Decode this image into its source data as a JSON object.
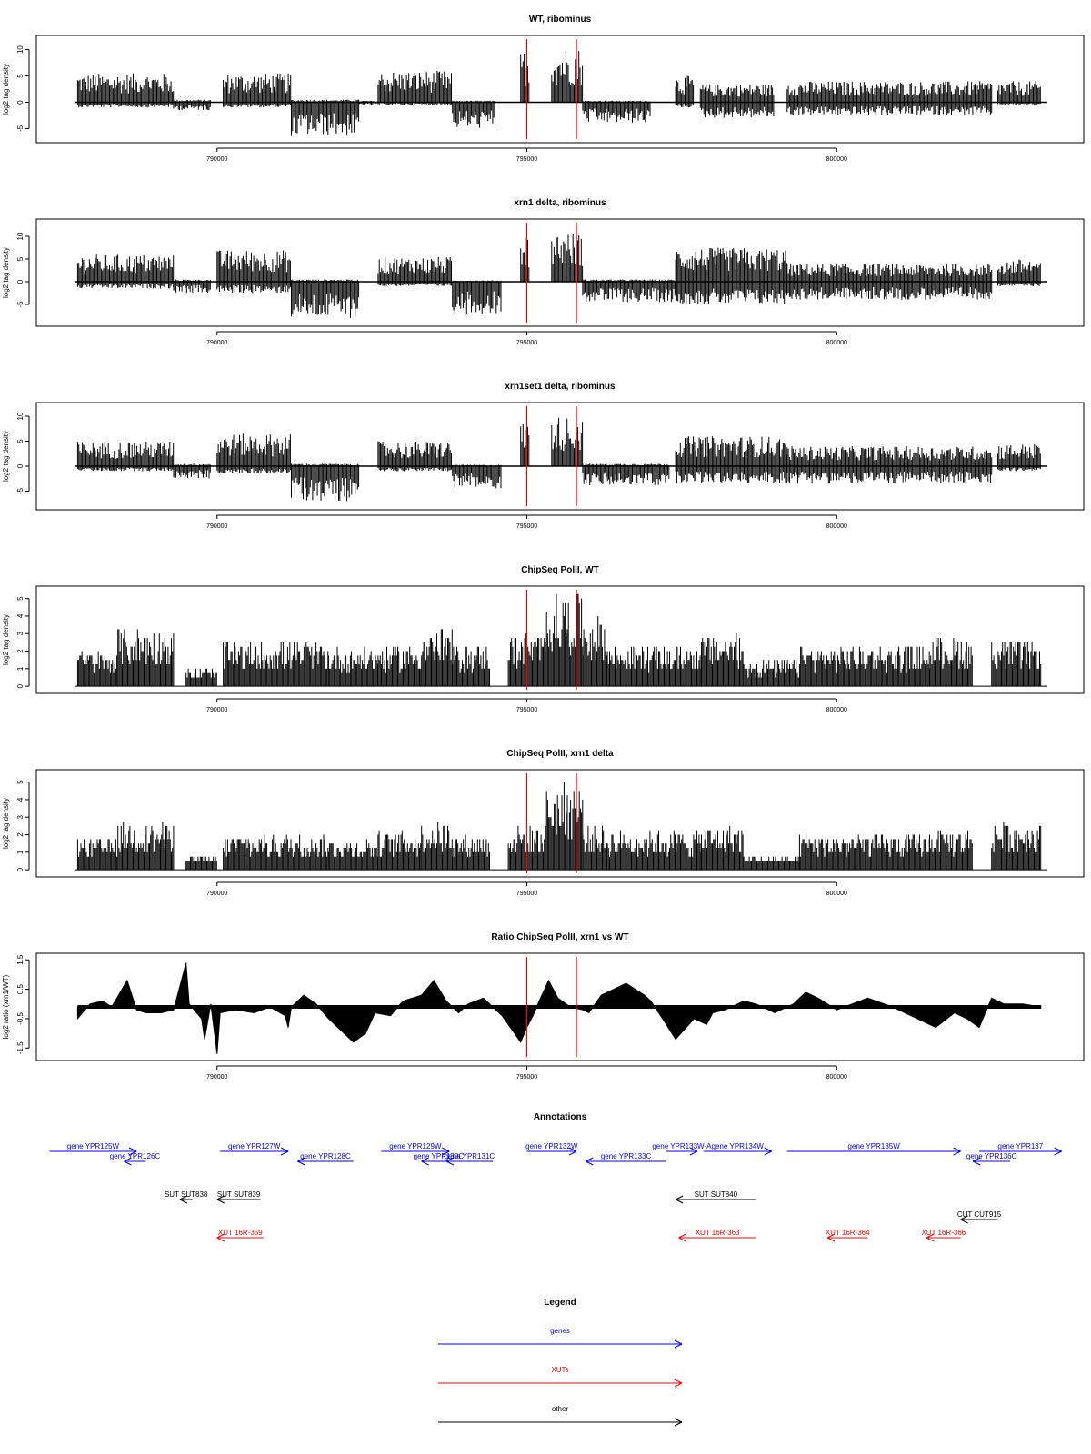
{
  "chart_data": {
    "type": "genome-track-panels",
    "x_range": [
      787700,
      803400
    ],
    "x_ticks": [
      790000,
      795000,
      800000
    ],
    "panels": [
      {
        "kind": "signed",
        "title": "WT, ribominus",
        "ylabel": "log2 tag density",
        "ylim": [
          -7,
          12
        ],
        "yticks": [
          -5,
          0,
          5,
          10
        ],
        "red_lines": [
          795000,
          795800
        ],
        "regions": [
          {
            "start": 787750,
            "end": 789300,
            "lo": -1.0,
            "hi": 5.5
          },
          {
            "start": 789300,
            "end": 789900,
            "lo": -1.5,
            "hi": 0.5
          },
          {
            "start": 790100,
            "end": 791200,
            "lo": -1.0,
            "hi": 5.5
          },
          {
            "start": 791200,
            "end": 792300,
            "lo": -6.5,
            "hi": 0.5
          },
          {
            "start": 792300,
            "end": 792600,
            "lo": -0.5,
            "hi": 0.3
          },
          {
            "start": 792600,
            "end": 793800,
            "lo": -0.5,
            "hi": 6.0
          },
          {
            "start": 793800,
            "end": 794500,
            "lo": -5.0,
            "hi": 0.3
          },
          {
            "start": 794900,
            "end": 795050,
            "lo": 0.0,
            "hi": 10.0
          },
          {
            "start": 795400,
            "end": 795900,
            "lo": 0.0,
            "hi": 10.5
          },
          {
            "start": 795900,
            "end": 797000,
            "lo": -4.0,
            "hi": 0.3
          },
          {
            "start": 797400,
            "end": 797700,
            "lo": -1.0,
            "hi": 5.0
          },
          {
            "start": 797800,
            "end": 799000,
            "lo": -3.0,
            "hi": 3.5
          },
          {
            "start": 799200,
            "end": 802500,
            "lo": -2.5,
            "hi": 4.0
          },
          {
            "start": 802600,
            "end": 803300,
            "lo": -0.5,
            "hi": 4.0
          }
        ]
      },
      {
        "kind": "signed",
        "title": "xrn1 delta, ribominus",
        "ylabel": "log2 tag density",
        "ylim": [
          -9,
          13
        ],
        "yticks": [
          -5,
          0,
          5,
          10
        ],
        "red_lines": [
          795000,
          795800
        ],
        "regions": [
          {
            "start": 787750,
            "end": 789300,
            "lo": -1.5,
            "hi": 6.0
          },
          {
            "start": 789300,
            "end": 789900,
            "lo": -2.5,
            "hi": 0.5
          },
          {
            "start": 790000,
            "end": 791200,
            "lo": -2.5,
            "hi": 7.0
          },
          {
            "start": 791200,
            "end": 792300,
            "lo": -8.0,
            "hi": 0.5
          },
          {
            "start": 792600,
            "end": 793800,
            "lo": -1.0,
            "hi": 5.5
          },
          {
            "start": 793800,
            "end": 794600,
            "lo": -7.0,
            "hi": 0.3
          },
          {
            "start": 794900,
            "end": 795050,
            "lo": 0.0,
            "hi": 10.5
          },
          {
            "start": 795400,
            "end": 795900,
            "lo": 0.0,
            "hi": 11.0
          },
          {
            "start": 795900,
            "end": 797400,
            "lo": -4.5,
            "hi": 0.5
          },
          {
            "start": 797400,
            "end": 799200,
            "lo": -5.0,
            "hi": 7.5
          },
          {
            "start": 799200,
            "end": 802500,
            "lo": -4.0,
            "hi": 4.0
          },
          {
            "start": 802600,
            "end": 803300,
            "lo": -1.0,
            "hi": 5.0
          }
        ]
      },
      {
        "kind": "signed",
        "title": "xrn1set1 delta, ribominus",
        "ylabel": "log2 tag density",
        "ylim": [
          -8,
          12
        ],
        "yticks": [
          -5,
          0,
          5,
          10
        ],
        "red_lines": [
          795000,
          795800
        ],
        "regions": [
          {
            "start": 787750,
            "end": 789300,
            "lo": -1.0,
            "hi": 5.0
          },
          {
            "start": 789300,
            "end": 789900,
            "lo": -2.5,
            "hi": 0.5
          },
          {
            "start": 790000,
            "end": 791200,
            "lo": -1.5,
            "hi": 6.5
          },
          {
            "start": 791200,
            "end": 792300,
            "lo": -7.0,
            "hi": 0.5
          },
          {
            "start": 792600,
            "end": 793800,
            "lo": -1.0,
            "hi": 5.0
          },
          {
            "start": 793800,
            "end": 794600,
            "lo": -4.5,
            "hi": 0.3
          },
          {
            "start": 794900,
            "end": 795050,
            "lo": 0.0,
            "hi": 9.0
          },
          {
            "start": 795400,
            "end": 795900,
            "lo": 0.0,
            "hi": 10.0
          },
          {
            "start": 795900,
            "end": 797300,
            "lo": -4.0,
            "hi": 0.5
          },
          {
            "start": 797400,
            "end": 799200,
            "lo": -3.5,
            "hi": 6.0
          },
          {
            "start": 799200,
            "end": 802500,
            "lo": -3.5,
            "hi": 4.0
          },
          {
            "start": 802600,
            "end": 803300,
            "lo": -1.0,
            "hi": 4.5
          }
        ]
      },
      {
        "kind": "positive",
        "title": "ChipSeq PolII, WT",
        "ylabel": "log2 tag density",
        "ylim": [
          -0.2,
          5.5
        ],
        "yticks": [
          0,
          1,
          2,
          3,
          4,
          5
        ],
        "red_lines": [
          795000,
          795800
        ],
        "regions": [
          {
            "start": 787750,
            "end": 788400,
            "hi": 2.0
          },
          {
            "start": 788400,
            "end": 789300,
            "hi": 3.3
          },
          {
            "start": 789500,
            "end": 790000,
            "hi": 1.0
          },
          {
            "start": 790100,
            "end": 791800,
            "hi": 2.5
          },
          {
            "start": 791800,
            "end": 792600,
            "hi": 2.2
          },
          {
            "start": 792600,
            "end": 793300,
            "hi": 2.3
          },
          {
            "start": 793300,
            "end": 793800,
            "hi": 3.2
          },
          {
            "start": 793800,
            "end": 794400,
            "hi": 2.3
          },
          {
            "start": 794700,
            "end": 795300,
            "hi": 3.0
          },
          {
            "start": 795300,
            "end": 795900,
            "hi": 5.2
          },
          {
            "start": 795900,
            "end": 796300,
            "hi": 4.0
          },
          {
            "start": 796300,
            "end": 797800,
            "hi": 2.3
          },
          {
            "start": 797800,
            "end": 798500,
            "hi": 2.9
          },
          {
            "start": 798500,
            "end": 799400,
            "hi": 1.5
          },
          {
            "start": 799400,
            "end": 801500,
            "hi": 2.3
          },
          {
            "start": 801500,
            "end": 802200,
            "hi": 2.8
          },
          {
            "start": 802500,
            "end": 803300,
            "hi": 2.6
          }
        ]
      },
      {
        "kind": "positive",
        "title": "ChipSeq PolII, xrn1 delta",
        "ylabel": "log2 tag density",
        "ylim": [
          -0.2,
          5.5
        ],
        "yticks": [
          0,
          1,
          2,
          3,
          4,
          5
        ],
        "red_lines": [
          795000,
          795800
        ],
        "regions": [
          {
            "start": 787750,
            "end": 788400,
            "hi": 1.8
          },
          {
            "start": 788400,
            "end": 789300,
            "hi": 2.7
          },
          {
            "start": 789500,
            "end": 790000,
            "hi": 0.8
          },
          {
            "start": 790100,
            "end": 791800,
            "hi": 2.0
          },
          {
            "start": 791800,
            "end": 792600,
            "hi": 1.8
          },
          {
            "start": 792600,
            "end": 793300,
            "hi": 2.2
          },
          {
            "start": 793300,
            "end": 793800,
            "hi": 2.8
          },
          {
            "start": 793800,
            "end": 794400,
            "hi": 2.0
          },
          {
            "start": 794700,
            "end": 795300,
            "hi": 2.5
          },
          {
            "start": 795300,
            "end": 795900,
            "hi": 5.0
          },
          {
            "start": 795900,
            "end": 796300,
            "hi": 2.5
          },
          {
            "start": 796300,
            "end": 797800,
            "hi": 2.2
          },
          {
            "start": 797800,
            "end": 798500,
            "hi": 2.5
          },
          {
            "start": 798500,
            "end": 799400,
            "hi": 0.8
          },
          {
            "start": 799400,
            "end": 801500,
            "hi": 2.0
          },
          {
            "start": 801500,
            "end": 802200,
            "hi": 2.3
          },
          {
            "start": 802500,
            "end": 803300,
            "hi": 2.7
          }
        ]
      },
      {
        "kind": "ratio",
        "title": "Ratio ChipSeq PolII, xrn1 vs WT",
        "ylabel": "log2 ratio (xrn1/WT)",
        "ylim": [
          -1.8,
          1.6
        ],
        "yticks": [
          -1.5,
          -0.5,
          0.5,
          1.5
        ],
        "baseline": -0.1,
        "red_lines": [
          795000,
          795800
        ],
        "profile": [
          [
            787750,
            -0.5
          ],
          [
            787950,
            0.0
          ],
          [
            788150,
            0.1
          ],
          [
            788300,
            -0.1
          ],
          [
            788550,
            0.8
          ],
          [
            788700,
            -0.2
          ],
          [
            788850,
            -0.3
          ],
          [
            789100,
            -0.3
          ],
          [
            789300,
            -0.2
          ],
          [
            789500,
            1.4
          ],
          [
            789550,
            0.0
          ],
          [
            789750,
            -0.5
          ],
          [
            789800,
            -1.2
          ],
          [
            789900,
            0.0
          ],
          [
            790000,
            -1.7
          ],
          [
            790050,
            -0.3
          ],
          [
            790300,
            -0.2
          ],
          [
            790600,
            -0.3
          ],
          [
            790850,
            -0.1
          ],
          [
            791100,
            -0.4
          ],
          [
            791150,
            -0.8
          ],
          [
            791200,
            -0.1
          ],
          [
            791400,
            0.3
          ],
          [
            791600,
            0.0
          ],
          [
            791800,
            -0.5
          ],
          [
            792200,
            -1.3
          ],
          [
            792400,
            -1.0
          ],
          [
            792550,
            -0.3
          ],
          [
            792800,
            -0.4
          ],
          [
            793000,
            0.1
          ],
          [
            793300,
            0.3
          ],
          [
            793500,
            0.8
          ],
          [
            793700,
            0.1
          ],
          [
            793900,
            -0.3
          ],
          [
            794050,
            0.0
          ],
          [
            794300,
            0.2
          ],
          [
            794600,
            -0.4
          ],
          [
            794900,
            -1.3
          ],
          [
            795000,
            -0.8
          ],
          [
            795100,
            -0.4
          ],
          [
            795200,
            0.1
          ],
          [
            795350,
            0.8
          ],
          [
            795500,
            0.2
          ],
          [
            795700,
            -0.1
          ],
          [
            795900,
            -0.2
          ],
          [
            796000,
            -0.3
          ],
          [
            796200,
            0.3
          ],
          [
            796600,
            0.7
          ],
          [
            796900,
            0.3
          ],
          [
            797000,
            0.1
          ],
          [
            797250,
            -0.7
          ],
          [
            797400,
            -1.2
          ],
          [
            797700,
            -0.5
          ],
          [
            797900,
            -0.7
          ],
          [
            798000,
            -0.3
          ],
          [
            798200,
            -0.2
          ],
          [
            798500,
            0.1
          ],
          [
            798700,
            0.0
          ],
          [
            799000,
            -0.3
          ],
          [
            799300,
            0.0
          ],
          [
            799500,
            0.4
          ],
          [
            799700,
            0.2
          ],
          [
            800000,
            -0.2
          ],
          [
            800500,
            0.2
          ],
          [
            800900,
            -0.1
          ],
          [
            801300,
            -0.5
          ],
          [
            801600,
            -0.8
          ],
          [
            801900,
            -0.3
          ],
          [
            802100,
            -0.5
          ],
          [
            802300,
            -0.8
          ],
          [
            802500,
            0.2
          ],
          [
            802700,
            0.0
          ],
          [
            803000,
            0.0
          ],
          [
            803300,
            -0.1
          ]
        ]
      }
    ],
    "annotations": {
      "title": "Annotations",
      "x_right_extent": 803630,
      "features": [
        {
          "label": "gene YPR125W",
          "start": 787300,
          "end": 788700,
          "dir": "+",
          "row": 0,
          "type": "gene"
        },
        {
          "label": "gene YPR126C",
          "start": 788500,
          "end": 788850,
          "dir": "-",
          "row": 1,
          "type": "gene"
        },
        {
          "label": "gene YPR127W",
          "start": 790050,
          "end": 791150,
          "dir": "+",
          "row": 0,
          "type": "gene"
        },
        {
          "label": "gene YPR128C",
          "start": 791300,
          "end": 792200,
          "dir": "-",
          "row": 1,
          "type": "gene"
        },
        {
          "label": "gene YPR129W",
          "start": 792650,
          "end": 793750,
          "dir": "+",
          "row": 0,
          "type": "gene"
        },
        {
          "label": "gene YPR130C",
          "start": 793300,
          "end": 793850,
          "dir": "-",
          "row": 1,
          "type": "gene"
        },
        {
          "label": "gene YPR131C",
          "start": 793700,
          "end": 794450,
          "dir": "-",
          "row": 1,
          "type": "gene"
        },
        {
          "label": "gene YPR132W",
          "start": 795000,
          "end": 795800,
          "dir": "+",
          "row": 0,
          "type": "gene"
        },
        {
          "label": "gene YPR133C",
          "start": 795950,
          "end": 797250,
          "dir": "-",
          "row": 1,
          "type": "gene"
        },
        {
          "label": "gene YPR133W-A",
          "start": 797250,
          "end": 797750,
          "dir": "+",
          "row": 0,
          "type": "gene"
        },
        {
          "label": "gene YPR134W",
          "start": 797850,
          "end": 798950,
          "dir": "+",
          "row": 0,
          "type": "gene"
        },
        {
          "label": "gene YPR135W",
          "start": 799200,
          "end": 802000,
          "dir": "+",
          "row": 0,
          "type": "gene"
        },
        {
          "label": "gene YPR136C",
          "start": 802200,
          "end": 802800,
          "dir": "-",
          "row": 1,
          "type": "gene"
        },
        {
          "label": "gene YPR137",
          "start": 802300,
          "end": 803630,
          "dir": "+",
          "row": 0,
          "type": "gene"
        },
        {
          "label": "SUT SUT838",
          "start": 789400,
          "end": 789600,
          "dir": "-",
          "row": 2,
          "type": "other"
        },
        {
          "label": "SUT SUT839",
          "start": 790000,
          "end": 790700,
          "dir": "-",
          "row": 2,
          "type": "other"
        },
        {
          "label": "SUT SUT840",
          "start": 797400,
          "end": 798700,
          "dir": "-",
          "row": 2,
          "type": "other"
        },
        {
          "label": "CUT CUT915",
          "start": 802000,
          "end": 802600,
          "dir": "-",
          "row": 3,
          "type": "other"
        },
        {
          "label": "XUT 16R-359",
          "start": 790000,
          "end": 790750,
          "dir": "-",
          "row": 4,
          "type": "xut"
        },
        {
          "label": "XUT 16R-363",
          "start": 797450,
          "end": 798700,
          "dir": "-",
          "row": 4,
          "type": "xut"
        },
        {
          "label": "XUT 16R-364",
          "start": 799850,
          "end": 800500,
          "dir": "-",
          "row": 4,
          "type": "xut"
        },
        {
          "label": "XUT 16R-366",
          "start": 801450,
          "end": 802000,
          "dir": "-",
          "row": 4,
          "type": "xut"
        }
      ]
    },
    "legend": {
      "title": "Legend",
      "items": [
        {
          "label": "genes",
          "type": "gene"
        },
        {
          "label": "XUTs",
          "type": "xut"
        },
        {
          "label": "other",
          "type": "other"
        }
      ]
    }
  },
  "colors": {
    "signal": "#000000",
    "marker": "#ff0000",
    "gene": "#0000ff",
    "xut": "#ff0000",
    "other": "#000000",
    "frame": "#000000"
  }
}
